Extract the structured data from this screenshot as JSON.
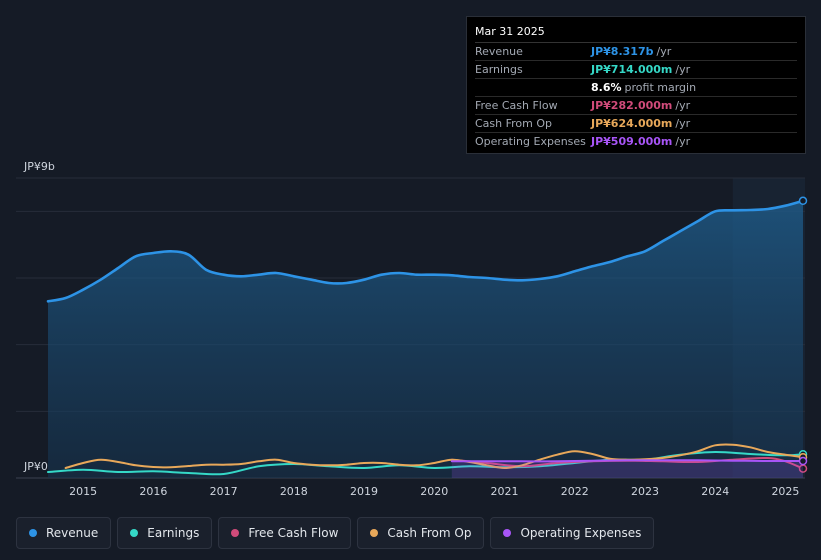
{
  "chart_data": {
    "type": "area",
    "y_axis": {
      "top_label": "JP¥9b",
      "bottom_label": "JP¥0",
      "ylim": [
        0,
        9
      ],
      "unit": "billions JPY"
    },
    "x_tick_labels": [
      "2015",
      "2016",
      "2017",
      "2018",
      "2019",
      "2020",
      "2021",
      "2022",
      "2023",
      "2024",
      "2025"
    ],
    "xlim": [
      2014.5,
      2025.25
    ],
    "highlight_start": 2024.25,
    "series": [
      {
        "name": "Revenue",
        "color": "#2d93e6",
        "fill": true,
        "x": [
          2014.5,
          2014.75,
          2015.0,
          2015.25,
          2015.5,
          2015.75,
          2016.0,
          2016.25,
          2016.5,
          2016.75,
          2017.0,
          2017.25,
          2017.5,
          2017.75,
          2018.0,
          2018.25,
          2018.5,
          2018.75,
          2019.0,
          2019.25,
          2019.5,
          2019.75,
          2020.0,
          2020.25,
          2020.5,
          2020.75,
          2021.0,
          2021.25,
          2021.5,
          2021.75,
          2022.0,
          2022.25,
          2022.5,
          2022.75,
          2023.0,
          2023.25,
          2023.5,
          2023.75,
          2024.0,
          2024.25,
          2024.5,
          2024.75,
          2025.0,
          2025.25
        ],
        "values": [
          5.3,
          5.4,
          5.65,
          5.95,
          6.3,
          6.65,
          6.75,
          6.8,
          6.7,
          6.25,
          6.1,
          6.05,
          6.1,
          6.15,
          6.05,
          5.95,
          5.85,
          5.85,
          5.95,
          6.1,
          6.15,
          6.1,
          6.1,
          6.08,
          6.03,
          6.0,
          5.95,
          5.93,
          5.97,
          6.05,
          6.2,
          6.35,
          6.48,
          6.65,
          6.8,
          7.1,
          7.4,
          7.7,
          8.0,
          8.03,
          8.04,
          8.07,
          8.17,
          8.317
        ]
      },
      {
        "name": "Earnings",
        "color": "#35d8c7",
        "fill": false,
        "x": [
          2014.5,
          2015.0,
          2015.5,
          2016.0,
          2016.5,
          2017.0,
          2017.5,
          2018.0,
          2018.5,
          2019.0,
          2019.5,
          2020.0,
          2020.5,
          2021.0,
          2021.5,
          2022.0,
          2022.5,
          2023.0,
          2023.5,
          2024.0,
          2024.5,
          2025.0,
          2025.25
        ],
        "values": [
          0.18,
          0.25,
          0.18,
          0.2,
          0.15,
          0.12,
          0.35,
          0.42,
          0.35,
          0.3,
          0.38,
          0.3,
          0.35,
          0.32,
          0.35,
          0.45,
          0.55,
          0.55,
          0.7,
          0.78,
          0.72,
          0.68,
          0.714
        ]
      },
      {
        "name": "Free Cash Flow",
        "color": "#d04b7a",
        "fill": false,
        "x": [
          2020.25,
          2020.75,
          2021.25,
          2021.75,
          2022.25,
          2022.75,
          2023.25,
          2023.75,
          2024.25,
          2024.75,
          2025.0,
          2025.25
        ],
        "values": [
          0.55,
          0.45,
          0.35,
          0.45,
          0.5,
          0.52,
          0.5,
          0.48,
          0.55,
          0.6,
          0.5,
          0.282
        ]
      },
      {
        "name": "Cash From Op",
        "color": "#e8a85a",
        "fill": false,
        "x": [
          2014.75,
          2015.0,
          2015.25,
          2015.5,
          2015.75,
          2016.0,
          2016.25,
          2016.5,
          2016.75,
          2017.0,
          2017.25,
          2017.5,
          2017.75,
          2018.0,
          2018.25,
          2018.5,
          2018.75,
          2019.0,
          2019.25,
          2019.5,
          2019.75,
          2020.0,
          2020.25,
          2020.5,
          2020.75,
          2021.0,
          2021.25,
          2021.5,
          2021.75,
          2022.0,
          2022.25,
          2022.5,
          2022.75,
          2023.0,
          2023.25,
          2023.5,
          2023.75,
          2024.0,
          2024.25,
          2024.5,
          2024.75,
          2025.0,
          2025.25
        ],
        "values": [
          0.3,
          0.45,
          0.55,
          0.48,
          0.38,
          0.33,
          0.32,
          0.36,
          0.4,
          0.4,
          0.42,
          0.5,
          0.55,
          0.45,
          0.4,
          0.38,
          0.4,
          0.45,
          0.45,
          0.4,
          0.38,
          0.45,
          0.55,
          0.48,
          0.38,
          0.3,
          0.38,
          0.55,
          0.7,
          0.8,
          0.72,
          0.58,
          0.55,
          0.56,
          0.6,
          0.68,
          0.8,
          0.98,
          1.0,
          0.92,
          0.78,
          0.7,
          0.624
        ]
      },
      {
        "name": "Operating Expenses",
        "color": "#a855f7",
        "fill": true,
        "x": [
          2020.25,
          2020.75,
          2021.25,
          2021.75,
          2022.25,
          2022.75,
          2023.25,
          2023.75,
          2024.25,
          2024.75,
          2025.0,
          2025.25
        ],
        "values": [
          0.5,
          0.5,
          0.5,
          0.5,
          0.52,
          0.53,
          0.53,
          0.53,
          0.52,
          0.51,
          0.51,
          0.509
        ]
      }
    ]
  },
  "tooltip": {
    "date": "Mar 31 2025",
    "rows": [
      {
        "label": "Revenue",
        "value": "JP¥8.317b",
        "unit": "/yr",
        "color": "#2d93e6"
      },
      {
        "label": "Earnings",
        "value": "JP¥714.000m",
        "unit": "/yr",
        "color": "#35d8c7"
      },
      {
        "label": "",
        "value": "8.6%",
        "unit": "profit margin",
        "color": "#ffffff"
      },
      {
        "label": "Free Cash Flow",
        "value": "JP¥282.000m",
        "unit": "/yr",
        "color": "#d04b7a"
      },
      {
        "label": "Cash From Op",
        "value": "JP¥624.000m",
        "unit": "/yr",
        "color": "#e8a85a"
      },
      {
        "label": "Operating Expenses",
        "value": "JP¥509.000m",
        "unit": "/yr",
        "color": "#a855f7"
      }
    ]
  },
  "legend": [
    {
      "label": "Revenue",
      "color": "#2d93e6"
    },
    {
      "label": "Earnings",
      "color": "#35d8c7"
    },
    {
      "label": "Free Cash Flow",
      "color": "#d04b7a"
    },
    {
      "label": "Cash From Op",
      "color": "#e8a85a"
    },
    {
      "label": "Operating Expenses",
      "color": "#a855f7"
    }
  ]
}
